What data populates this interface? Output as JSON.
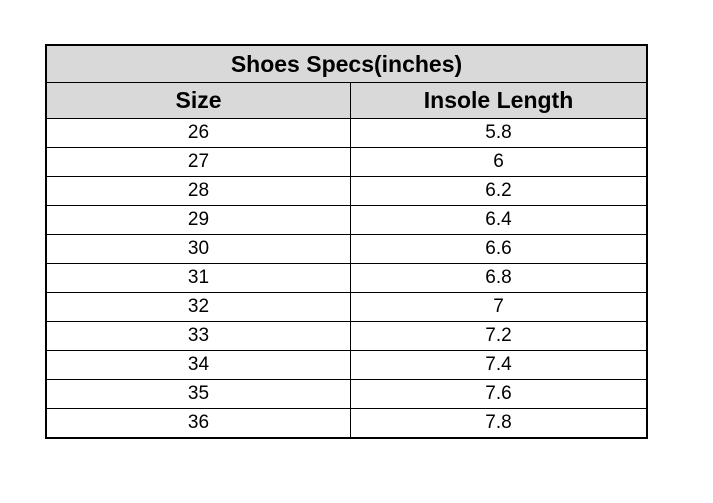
{
  "table": {
    "title": "Shoes Specs(inches)",
    "columns": [
      "Size",
      "Insole Length"
    ],
    "rows": [
      [
        "26",
        "5.8"
      ],
      [
        "27",
        "6"
      ],
      [
        "28",
        "6.2"
      ],
      [
        "29",
        "6.4"
      ],
      [
        "30",
        "6.6"
      ],
      [
        "31",
        "6.8"
      ],
      [
        "32",
        "7"
      ],
      [
        "33",
        "7.2"
      ],
      [
        "34",
        "7.4"
      ],
      [
        "35",
        "7.6"
      ],
      [
        "36",
        "7.8"
      ]
    ],
    "header_bg": "#d9d9d9"
  }
}
